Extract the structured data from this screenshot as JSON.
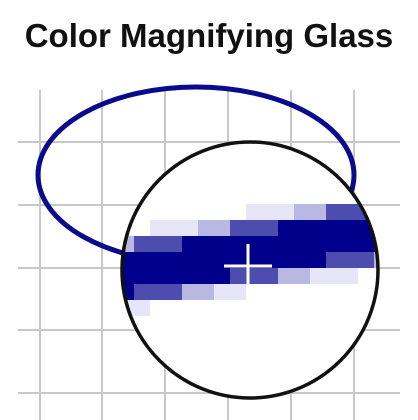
{
  "window": {
    "title": "Color Magnifying Glass"
  },
  "colors": {
    "background": "#ffffff",
    "grid": "#c8c8c8",
    "ellipse_stroke": "#0a0a8c",
    "lens_stroke": "#111111",
    "crosshair": "#ffffff",
    "pixel_dark": "#00008b",
    "pixel_mid": "#4d4db0",
    "pixel_light": "#b8b8e3",
    "pixel_faint": "#e6e6f6"
  },
  "icons": {
    "crosshair": "crosshair-icon",
    "lens": "magnifier-lens-icon"
  }
}
